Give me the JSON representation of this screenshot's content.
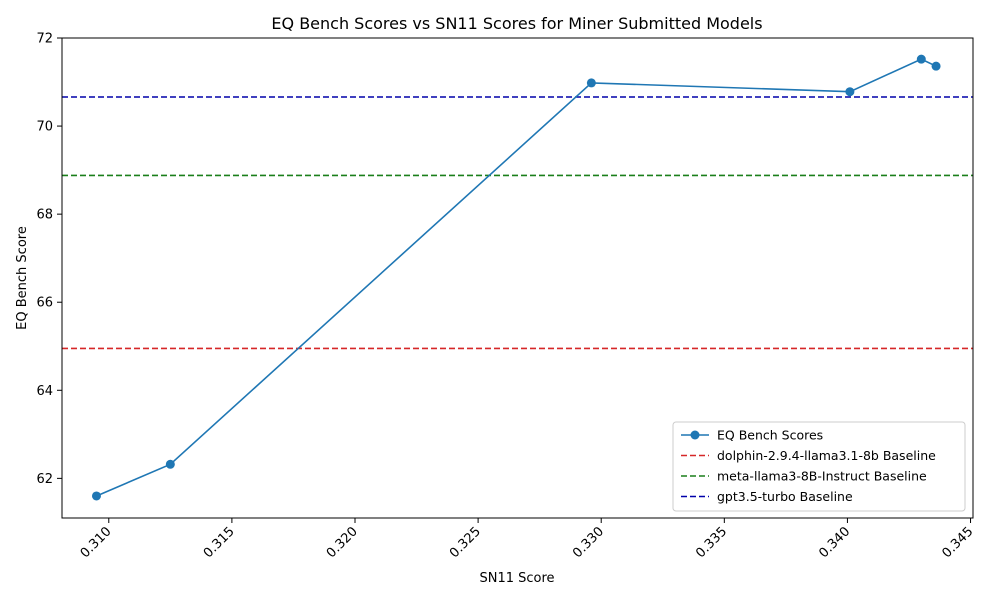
{
  "chart_data": {
    "type": "line",
    "title": "EQ Bench Scores vs SN11 Scores for Miner Submitted Models",
    "xlabel": "SN11 Score",
    "ylabel": "EQ Bench Score",
    "xlim": [
      0.3081,
      0.3451
    ],
    "ylim": [
      61.1,
      72.0
    ],
    "xticks": [
      0.31,
      0.315,
      0.32,
      0.325,
      0.33,
      0.335,
      0.34,
      0.345
    ],
    "xtick_labels": [
      "0.310",
      "0.315",
      "0.320",
      "0.325",
      "0.330",
      "0.335",
      "0.340",
      "0.345"
    ],
    "yticks": [
      62,
      64,
      66,
      68,
      70,
      72
    ],
    "ytick_labels": [
      "62",
      "64",
      "66",
      "68",
      "70",
      "72"
    ],
    "grid": false,
    "legend_position": "lower-right",
    "series": [
      {
        "name": "EQ Bench Scores",
        "color": "#1f77b4",
        "x": [
          0.3095,
          0.3125,
          0.3296,
          0.3401,
          0.343,
          0.3436
        ],
        "y": [
          61.6,
          62.32,
          70.98,
          70.78,
          71.52,
          71.36
        ]
      }
    ],
    "baselines": [
      {
        "name": "dolphin-2.9.4-llama3.1-8b Baseline",
        "y": 64.95,
        "color": "#d62728"
      },
      {
        "name": "meta-llama3-8B-Instruct Baseline",
        "y": 68.88,
        "color": "#1a7f1a"
      },
      {
        "name": "gpt3.5-turbo Baseline",
        "y": 70.66,
        "color": "#0000aa"
      }
    ]
  }
}
